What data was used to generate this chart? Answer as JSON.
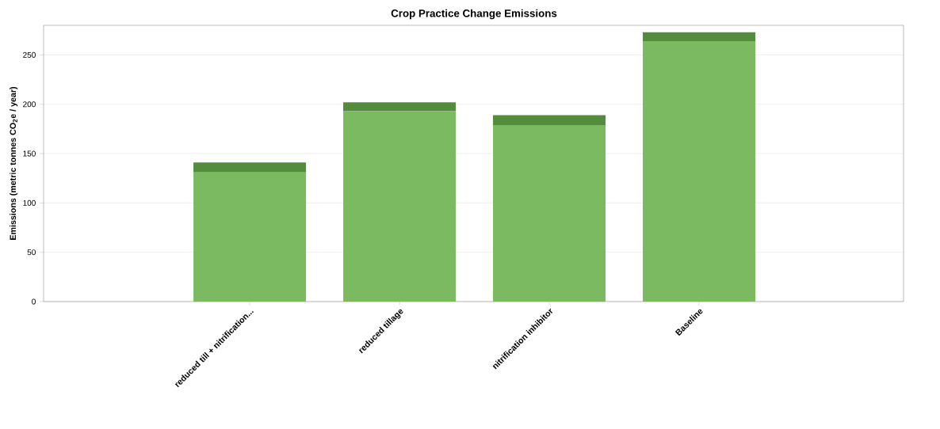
{
  "chart_data": {
    "type": "bar",
    "title": "Crop Practice Change Emissions",
    "ylabel": "Emissions (metric tonnes CO$_{2}$e / year)",
    "categories": [
      "reduced till + nitrification...",
      "reduced tillage",
      "nitrification inhibitor",
      "Baseline"
    ],
    "stacked": true,
    "series": [
      {
        "color": "#7cba62",
        "values": [
          131,
          193,
          179,
          264
        ]
      },
      {
        "color": "#548c3e",
        "values": [
          10,
          9,
          10,
          9
        ]
      }
    ],
    "ylim": [
      0,
      280
    ],
    "yticks": [
      0,
      50,
      100,
      150,
      200,
      250
    ],
    "grid": "y"
  }
}
